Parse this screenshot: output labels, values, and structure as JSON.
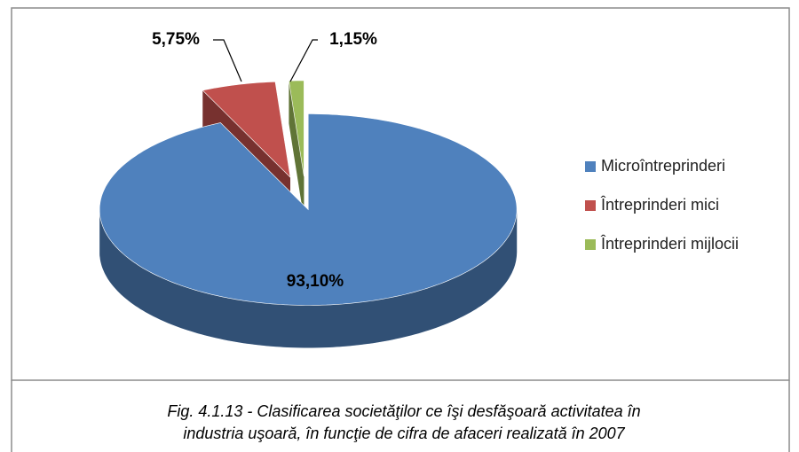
{
  "chart_data": {
    "type": "pie",
    "categories": [
      "Microîntreprinderi",
      "Întreprinderi mici",
      "Întreprinderi mijlocii"
    ],
    "values": [
      93.1,
      5.75,
      1.15
    ],
    "value_labels": [
      "93,10%",
      "5,75%",
      "1,15%"
    ],
    "colors": [
      "#4f81bd",
      "#c0504d",
      "#9bbb59"
    ],
    "legend": "right",
    "caption": [
      "Fig. 4.1.13 - Clasificarea societăţilor ce îşi desfăşoară activitatea în",
      "industria uşoară, în funcţie de cifra de afaceri realizată în 2007"
    ]
  }
}
